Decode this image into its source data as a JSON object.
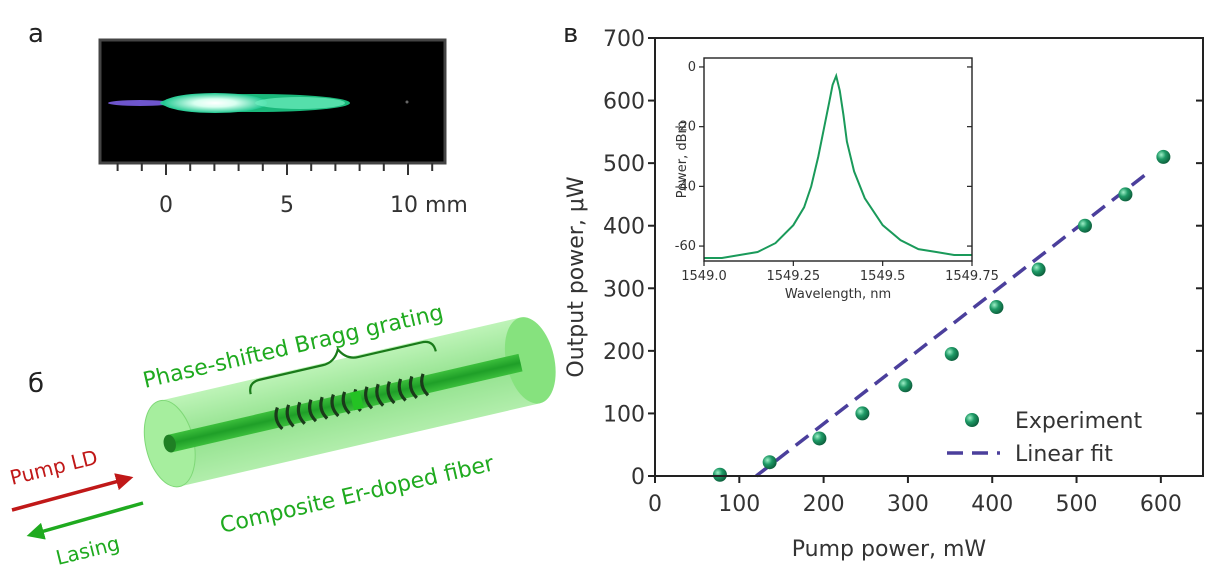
{
  "panel_labels": {
    "a": "a",
    "b": "б",
    "c": "в"
  },
  "photo": {
    "ticks": [
      "0",
      "5",
      "10 mm"
    ],
    "tick_values": [
      0,
      5,
      10
    ]
  },
  "diagram": {
    "grating_label": "Phase-shifted Bragg grating",
    "fiber_label": "Composite Er-doped fiber",
    "pump_label": "Pump LD",
    "lasing_label": "Lasing"
  },
  "colors": {
    "experiment": "#1a8a5a",
    "fit": "#4b3f9c",
    "spectrum": "#1a9a5a",
    "pump_arrow": "#c01818",
    "lasing_arrow": "#1faa1f"
  },
  "chart_data": [
    {
      "type": "scatter",
      "xlabel": "Pump power, mW",
      "ylabel": "Output power, μW",
      "xlim": [
        0,
        650
      ],
      "ylim": [
        0,
        700
      ],
      "xticks": [
        0,
        100,
        200,
        300,
        400,
        500,
        600
      ],
      "yticks": [
        0,
        100,
        200,
        300,
        400,
        500,
        600,
        700
      ],
      "legend_position": "bottom-right",
      "series": [
        {
          "name": "Experiment",
          "x": [
            77,
            136,
            195,
            246,
            297,
            352,
            405,
            455,
            510,
            558,
            603
          ],
          "y": [
            2,
            22,
            60,
            100,
            145,
            195,
            270,
            330,
            400,
            450,
            510
          ]
        },
        {
          "name": "Linear fit",
          "style": "dashed",
          "x": [
            120,
            585
          ],
          "y": [
            0,
            485
          ]
        }
      ]
    },
    {
      "type": "line",
      "xlabel": "Wavelength, nm",
      "ylabel": "Power, dBm",
      "xlim": [
        1549.0,
        1549.75
      ],
      "ylim": [
        -65,
        3
      ],
      "xticks": [
        1549.0,
        1549.25,
        1549.5,
        1549.75
      ],
      "xtick_labels": [
        "1549.0",
        "1549.25",
        "1549.5",
        "1549.75"
      ],
      "yticks": [
        0,
        -20,
        -40,
        -60
      ],
      "yticks_labels": [
        "0",
        "-20",
        "-40",
        "-60"
      ],
      "x": [
        1549.0,
        1549.05,
        1549.1,
        1549.15,
        1549.2,
        1549.25,
        1549.28,
        1549.3,
        1549.32,
        1549.34,
        1549.35,
        1549.36,
        1549.37,
        1549.38,
        1549.39,
        1549.4,
        1549.42,
        1549.45,
        1549.5,
        1549.55,
        1549.6,
        1549.65,
        1549.7,
        1549.75
      ],
      "y": [
        -64,
        -64,
        -63,
        -62,
        -59,
        -53,
        -47,
        -40,
        -30,
        -18,
        -12,
        -6,
        -3,
        -8,
        -16,
        -25,
        -35,
        -44,
        -53,
        -58,
        -61,
        -62,
        -63,
        -63
      ]
    }
  ]
}
